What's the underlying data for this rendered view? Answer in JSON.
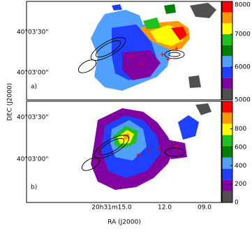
{
  "figure": {
    "x_label": "RA (J2000)",
    "y_label": "DEC (J2000)",
    "x_ticks": [
      "20h31m15.0",
      "12.0",
      "09.0"
    ]
  },
  "chart_data": [
    {
      "type": "image",
      "panel_label": "a)",
      "y_ticks": [
        "40°03'30\"",
        "40°03'00\""
      ],
      "colormap": [
        "#505050",
        "#8000a0",
        "#2040ff",
        "#50a0ff",
        "#008000",
        "#20c020",
        "#ffff00",
        "#ff9900",
        "#ff0000"
      ],
      "clim": [
        5000,
        8000
      ],
      "cticks": [
        5000,
        6000,
        7000,
        8000
      ]
    },
    {
      "type": "image",
      "panel_label": "b)",
      "y_ticks": [
        "40°03'30\"",
        "40°03'00\""
      ],
      "colormap": [
        "#505050",
        "#8000a0",
        "#2040ff",
        "#50a0ff",
        "#008000",
        "#20c020",
        "#ffff00",
        "#ff9900",
        "#ff0000"
      ],
      "clim": [
        0,
        1100
      ],
      "cticks": [
        0,
        200,
        400,
        600,
        800
      ]
    }
  ]
}
